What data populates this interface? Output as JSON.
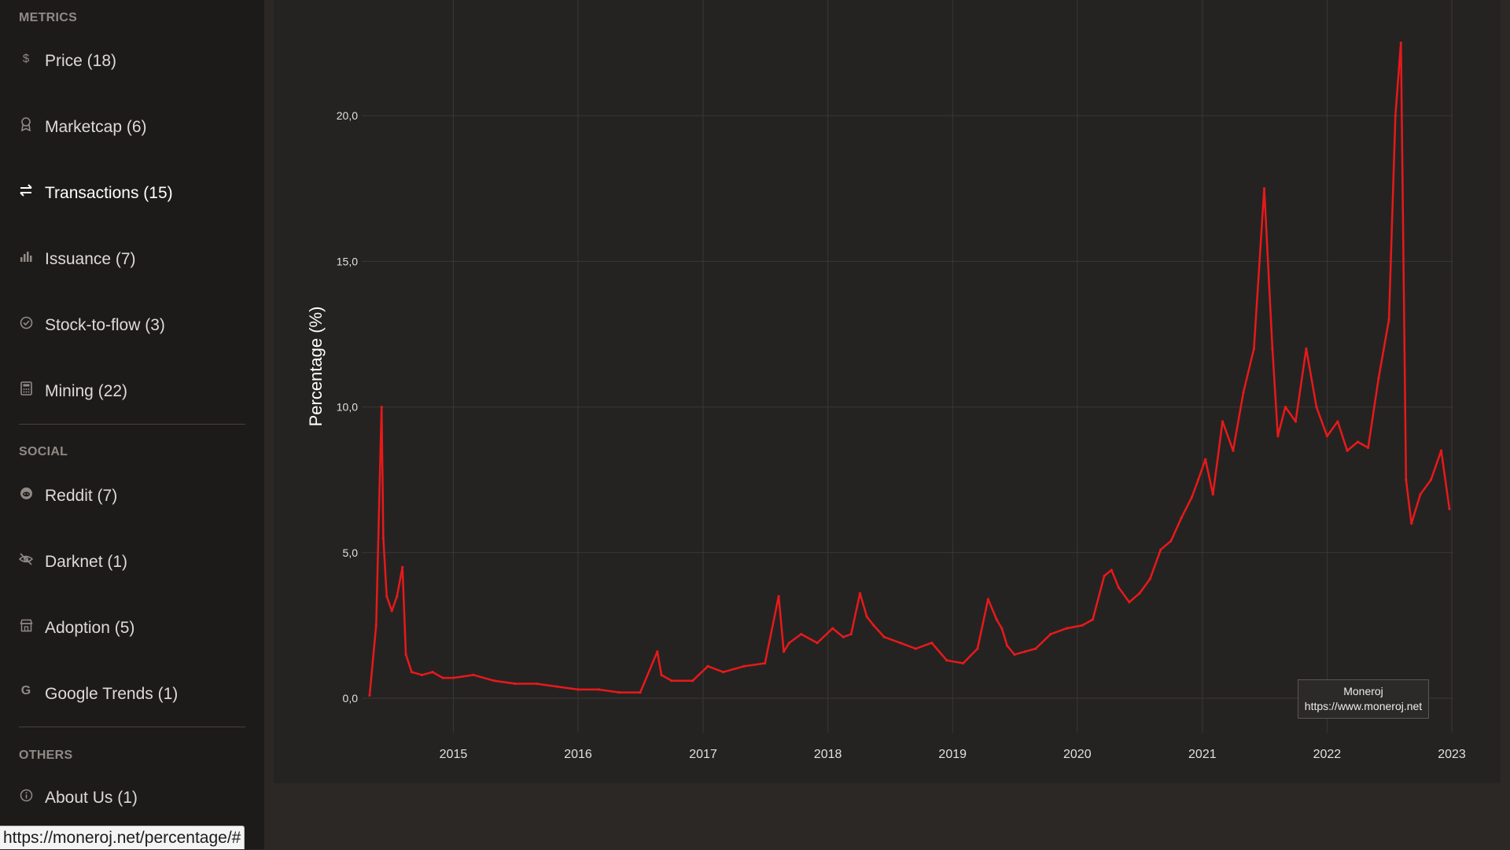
{
  "sidebar": {
    "metrics_title": "METRICS",
    "metrics_items": [
      {
        "label": "Price (18)",
        "icon": "dollar-icon"
      },
      {
        "label": "Marketcap (6)",
        "icon": "award-icon"
      },
      {
        "label": "Transactions (15)",
        "icon": "arrows-icon"
      },
      {
        "label": "Issuance (7)",
        "icon": "bar-chart-icon"
      },
      {
        "label": "Stock-to-flow (3)",
        "icon": "check-circle-icon"
      },
      {
        "label": "Mining (22)",
        "icon": "calculator-icon"
      }
    ],
    "social_title": "SOCIAL",
    "social_items": [
      {
        "label": "Reddit (7)",
        "icon": "reddit-icon"
      },
      {
        "label": "Darknet (1)",
        "icon": "eye-slash-icon"
      },
      {
        "label": "Adoption (5)",
        "icon": "shop-icon"
      },
      {
        "label": "Google Trends (1)",
        "icon": "google-icon"
      }
    ],
    "others_title": "OTHERS",
    "others_items": [
      {
        "label": "About Us (1)",
        "icon": "info-icon"
      }
    ],
    "active_item": "Transactions (15)"
  },
  "status_bar": {
    "url": "https://moneroj.net/percentage/#"
  },
  "watermark": {
    "line1": "Moneroj",
    "line2": "https://www.moneroj.net"
  },
  "colors": {
    "series": "#e8191a",
    "background": "#252322",
    "sidebar": "#1d1b1a"
  },
  "chart_data": {
    "type": "line",
    "title": "",
    "xlabel": "",
    "ylabel": "Percentage (%)",
    "ylim": [
      0,
      23
    ],
    "xlim": [
      "2014-05-01",
      "2023-01-01"
    ],
    "y_ticks": [
      "0,0",
      "5,0",
      "10,0",
      "15,0",
      "20,0"
    ],
    "x_ticks": [
      "2015",
      "2016",
      "2017",
      "2018",
      "2019",
      "2020",
      "2021",
      "2022",
      "2023"
    ],
    "grid": true,
    "series": [
      {
        "x": [
          "2014-05-01",
          "2014-05-20",
          "2014-06-05",
          "2014-06-10",
          "2014-06-20",
          "2014-07-05",
          "2014-07-20",
          "2014-08-05",
          "2014-08-15",
          "2014-09-01",
          "2014-10-01",
          "2014-11-01",
          "2014-12-01",
          "2015-01-01",
          "2015-03-01",
          "2015-05-01",
          "2015-07-01",
          "2015-09-01",
          "2015-11-01",
          "2016-01-01",
          "2016-03-01",
          "2016-05-01",
          "2016-07-01",
          "2016-08-20",
          "2016-09-01",
          "2016-10-01",
          "2016-12-01",
          "2017-01-15",
          "2017-03-01",
          "2017-05-01",
          "2017-07-01",
          "2017-08-10",
          "2017-08-25",
          "2017-09-10",
          "2017-10-15",
          "2017-12-01",
          "2018-01-15",
          "2018-02-15",
          "2018-03-10",
          "2018-04-05",
          "2018-04-25",
          "2018-05-15",
          "2018-06-15",
          "2018-08-01",
          "2018-09-15",
          "2018-11-01",
          "2018-12-15",
          "2019-02-01",
          "2019-03-15",
          "2019-04-15",
          "2019-05-10",
          "2019-05-25",
          "2019-06-10",
          "2019-07-01",
          "2019-08-01",
          "2019-09-01",
          "2019-10-15",
          "2019-12-01",
          "2020-01-15",
          "2020-02-15",
          "2020-03-20",
          "2020-04-10",
          "2020-05-01",
          "2020-06-01",
          "2020-07-01",
          "2020-08-01",
          "2020-09-01",
          "2020-10-01",
          "2020-11-01",
          "2020-12-01",
          "2020-12-20",
          "2021-01-10",
          "2021-02-01",
          "2021-03-01",
          "2021-04-01",
          "2021-05-01",
          "2021-06-01",
          "2021-07-01",
          "2021-07-25",
          "2021-08-10",
          "2021-09-01",
          "2021-10-01",
          "2021-11-01",
          "2021-12-01",
          "2022-01-01",
          "2022-02-01",
          "2022-03-01",
          "2022-04-01",
          "2022-05-01",
          "2022-06-01",
          "2022-07-01",
          "2022-07-20",
          "2022-08-05",
          "2022-08-20",
          "2022-09-05",
          "2022-10-01",
          "2022-11-01",
          "2022-12-01",
          "2022-12-25"
        ],
        "y": [
          0.1,
          2.5,
          10.0,
          5.5,
          3.5,
          3.0,
          3.5,
          4.5,
          1.5,
          0.9,
          0.8,
          0.9,
          0.7,
          0.7,
          0.8,
          0.6,
          0.5,
          0.5,
          0.4,
          0.3,
          0.3,
          0.2,
          0.2,
          1.6,
          0.8,
          0.6,
          0.6,
          1.1,
          0.9,
          1.1,
          1.2,
          3.5,
          1.6,
          1.9,
          2.2,
          1.9,
          2.4,
          2.1,
          2.2,
          3.6,
          2.8,
          2.5,
          2.1,
          1.9,
          1.7,
          1.9,
          1.3,
          1.2,
          1.7,
          3.4,
          2.7,
          2.4,
          1.8,
          1.5,
          1.6,
          1.7,
          2.2,
          2.4,
          2.5,
          2.7,
          4.2,
          4.4,
          3.8,
          3.3,
          3.6,
          4.1,
          5.1,
          5.4,
          6.2,
          6.9,
          7.5,
          8.2,
          7.0,
          9.5,
          8.5,
          10.5,
          12.0,
          17.5,
          12.0,
          9.0,
          10.0,
          9.5,
          12.0,
          10.0,
          9.0,
          9.5,
          8.5,
          8.8,
          8.6,
          11.0,
          13.0,
          20.0,
          22.5,
          7.5,
          6.0,
          7.0,
          7.5,
          8.5,
          6.5
        ]
      }
    ]
  }
}
